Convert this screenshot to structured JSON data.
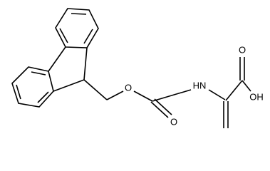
{
  "atoms": {
    "ester_oxygen": "O",
    "carbonyl_oxygen": "O",
    "amine": "HN",
    "acid_carbonyl_oxygen": "O",
    "hydroxyl": "OH"
  }
}
